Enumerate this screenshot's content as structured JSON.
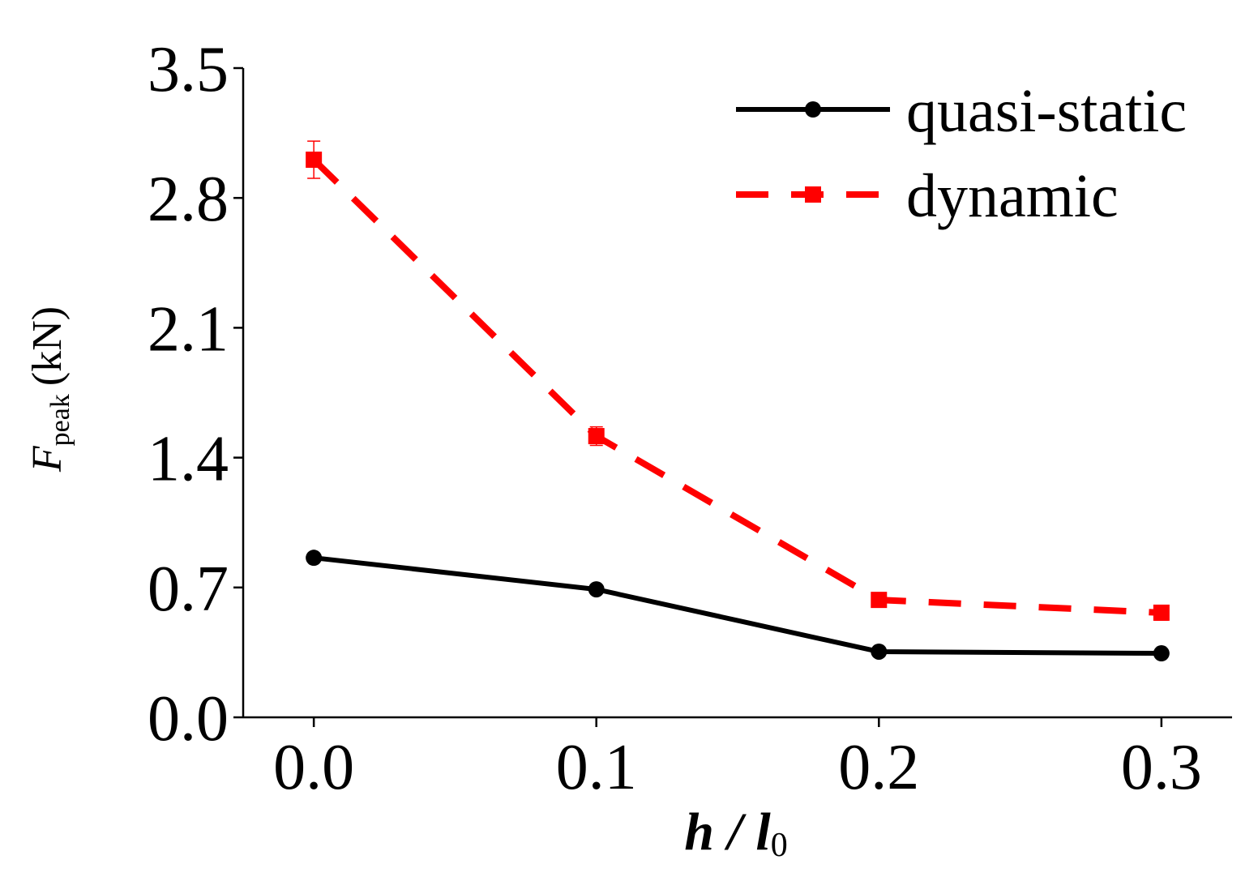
{
  "chart_data": {
    "type": "line",
    "ylabel": {
      "symbol": "F",
      "subscript": "peak",
      "unit": "(kN)"
    },
    "xlabel": {
      "main": "h / l",
      "subscript": "0"
    },
    "x": [
      0.0,
      0.1,
      0.2,
      0.3
    ],
    "series": [
      {
        "name": "quasi-static",
        "color": "#000000",
        "marker": "circle",
        "dashed": false,
        "values": [
          0.86,
          0.69,
          0.354,
          0.345
        ]
      },
      {
        "name": "dynamic",
        "color": "#ff0000",
        "marker": "square",
        "dashed": true,
        "values": [
          3.006,
          1.516,
          0.633,
          0.564
        ],
        "errors": [
          0.1,
          0.05,
          0.03,
          0.04
        ]
      }
    ],
    "xlim": [
      -0.025,
      0.325
    ],
    "ylim": [
      0,
      3.5
    ],
    "xticks": [
      {
        "value": 0,
        "label": "0.0"
      },
      0.1,
      0.2,
      0.3
    ],
    "yticks": [
      {
        "value": 0,
        "label": "0.0"
      },
      0.7,
      1.4,
      2.1,
      2.8,
      3.5
    ],
    "grid": false,
    "legend": "upper right"
  }
}
